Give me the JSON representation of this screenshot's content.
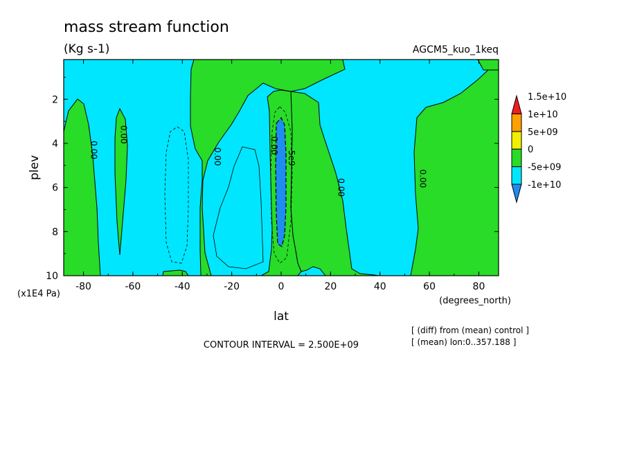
{
  "chart_data": {
    "type": "heatmap",
    "title": "mass stream function",
    "units": "(Kg s-1)",
    "run_label": "AGCM5_kuo_1keq",
    "xlabel": "lat",
    "x_units": "(degrees_north)",
    "ylabel": "plev",
    "y_units": "(x1E4 Pa)",
    "xlim": [
      -88,
      88
    ],
    "ylim": [
      10,
      0.2
    ],
    "x_ticks": [
      -80,
      -60,
      -40,
      -20,
      0,
      20,
      40,
      60,
      80
    ],
    "x_tick_labels": [
      "-80",
      "-60",
      "-40",
      "-20",
      "0",
      "20",
      "40",
      "60",
      "80"
    ],
    "y_ticks": [
      2,
      4,
      6,
      8,
      10
    ],
    "y_tick_labels": [
      "2",
      "4",
      "6",
      "8",
      "10"
    ],
    "colorbar": {
      "levels": [
        -10000000000,
        -5000000000,
        0,
        5000000000,
        10000000000,
        15000000000
      ],
      "labels": [
        "-1e+10",
        "-5e+09",
        "0",
        "5e+09",
        "1e+10",
        "1.5e+10"
      ],
      "colors": [
        "#1e8cf0",
        "#00e6ff",
        "#28dc28",
        "#f0f000",
        "#ffa000",
        "#f01e1e"
      ]
    },
    "contour_labels": [
      {
        "text": "0.00",
        "lat": -78,
        "plev": 4.3
      },
      {
        "text": "0.00",
        "lat": -66,
        "plev": 3.6
      },
      {
        "text": "0.00",
        "lat": -28,
        "plev": 4.6
      },
      {
        "text": "0.00",
        "lat": -5,
        "plev": 4.1
      },
      {
        "text": "-5e9",
        "lat": 2,
        "plev": 4.6
      },
      {
        "text": "0.00",
        "lat": 22,
        "plev": 6.0
      },
      {
        "text": "0.00",
        "lat": 55,
        "plev": 5.6
      }
    ],
    "contour_interval_label": "CONTOUR INTERVAL = 2.500E+09",
    "notes": [
      "[ (diff) from (mean) control ]",
      "[ (mean) lon:0..357.188 ]"
    ],
    "regions": [
      {
        "value_class": "0 to 5e+09",
        "color": "#28dc28"
      },
      {
        "value_class": "-5e+09 to 0",
        "color": "#00e6ff"
      },
      {
        "value_class": "-1e+10 to -5e+09",
        "color": "#1e8cf0"
      }
    ]
  }
}
